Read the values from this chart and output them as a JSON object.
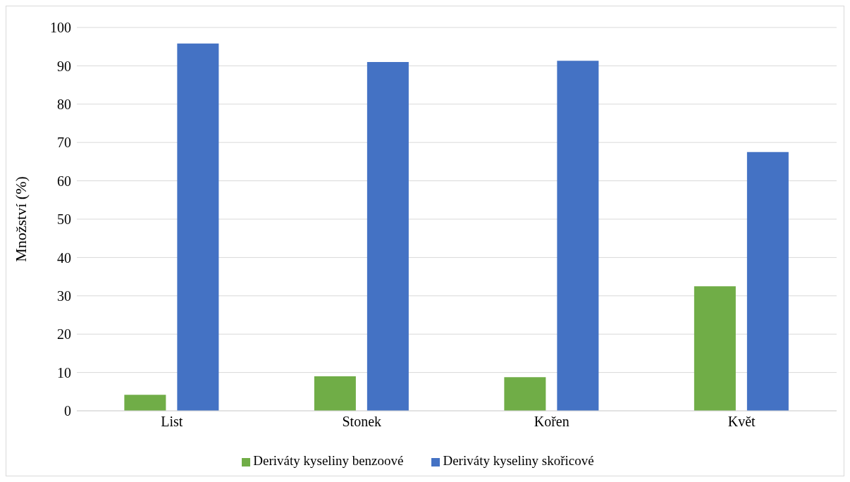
{
  "chart_data": {
    "type": "bar",
    "ylabel": "Množství (%)",
    "categories": [
      "List",
      "Stonek",
      "Kořen",
      "Květ"
    ],
    "series": [
      {
        "name": "Deriváty kyseliny benzoové",
        "color": "#70ad47",
        "values": [
          4.2,
          9.0,
          8.8,
          32.5
        ]
      },
      {
        "name": "Deriváty kyseliny skořicové",
        "color": "#4472c4",
        "values": [
          95.8,
          91.0,
          91.3,
          67.5
        ]
      }
    ],
    "ylim": [
      0,
      100
    ],
    "yticks": [
      0,
      10,
      20,
      30,
      40,
      50,
      60,
      70,
      80,
      90,
      100
    ],
    "grid": "y",
    "legend": "bottom"
  }
}
